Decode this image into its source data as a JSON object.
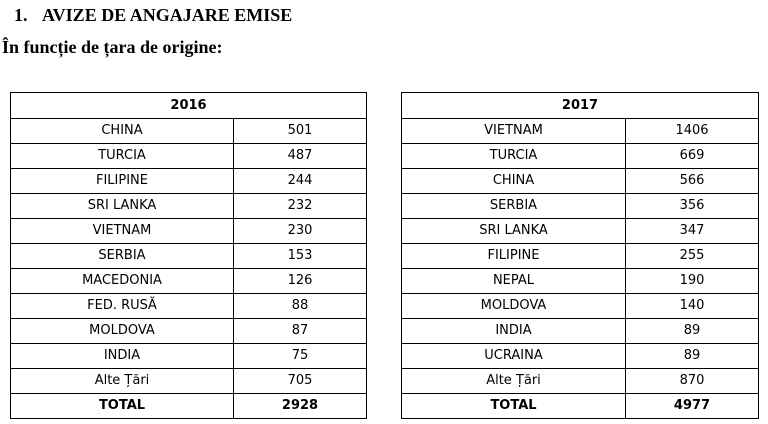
{
  "heading": {
    "number": "1.",
    "title": "AVIZE DE ANGAJARE EMISE"
  },
  "subheading": "În funcție de țara de origine:",
  "tables": [
    {
      "year": "2016",
      "rows": [
        {
          "country": "CHINA",
          "value": "501"
        },
        {
          "country": "TURCIA",
          "value": "487"
        },
        {
          "country": "FILIPINE",
          "value": "244"
        },
        {
          "country": "SRI LANKA",
          "value": "232"
        },
        {
          "country": "VIETNAM",
          "value": "230"
        },
        {
          "country": "SERBIA",
          "value": "153"
        },
        {
          "country": "MACEDONIA",
          "value": "126"
        },
        {
          "country": "FED. RUSĂ",
          "value": "88"
        },
        {
          "country": "MOLDOVA",
          "value": "87"
        },
        {
          "country": "INDIA",
          "value": "75"
        },
        {
          "country": "Alte Țări",
          "value": "705"
        }
      ],
      "total_label": "TOTAL",
      "total_value": "2928"
    },
    {
      "year": "2017",
      "rows": [
        {
          "country": "VIETNAM",
          "value": "1406"
        },
        {
          "country": "TURCIA",
          "value": "669"
        },
        {
          "country": "CHINA",
          "value": "566"
        },
        {
          "country": "SERBIA",
          "value": "356"
        },
        {
          "country": "SRI LANKA",
          "value": "347"
        },
        {
          "country": "FILIPINE",
          "value": "255"
        },
        {
          "country": "NEPAL",
          "value": "190"
        },
        {
          "country": "MOLDOVA",
          "value": "140"
        },
        {
          "country": "INDIA",
          "value": "89"
        },
        {
          "country": "UCRAINA",
          "value": "89"
        },
        {
          "country": "Alte Țări",
          "value": "870"
        }
      ],
      "total_label": "TOTAL",
      "total_value": "4977"
    }
  ]
}
